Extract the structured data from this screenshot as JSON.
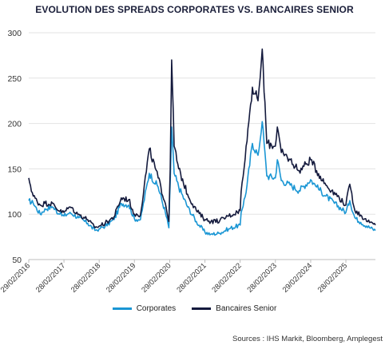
{
  "chart_data": {
    "type": "line",
    "title": "EVOLUTION DES SPREADS CORPORATES VS. BANCAIRES SENIOR",
    "xlabel": "",
    "ylabel": "",
    "ylim": [
      50,
      300
    ],
    "yticks": [
      50,
      100,
      150,
      200,
      250,
      300
    ],
    "grid": true,
    "legend_position": "bottom",
    "x_tick_labels": [
      "29/02/2016",
      "28/02/2017",
      "28/02/2018",
      "28/02/2019",
      "29/02/2020",
      "28/02/2021",
      "28/02/2022",
      "28/02/2023",
      "29/02/2024",
      "28/02/2025"
    ],
    "x_range": [
      "2016-02-29",
      "2025-12-31"
    ],
    "series": [
      {
        "name": "Corporates",
        "color": "#1a96d4",
        "x": [
          "2016-02-29",
          "2016-04-15",
          "2016-06-27",
          "2016-08-15",
          "2016-11-01",
          "2017-01-15",
          "2017-02-28",
          "2017-05-01",
          "2017-08-01",
          "2017-11-01",
          "2018-01-15",
          "2018-02-28",
          "2018-05-01",
          "2018-08-01",
          "2018-10-15",
          "2018-12-31",
          "2019-02-28",
          "2019-05-01",
          "2019-08-01",
          "2019-11-01",
          "2020-01-15",
          "2020-02-20",
          "2020-03-05",
          "2020-03-20",
          "2020-04-15",
          "2020-06-01",
          "2020-09-01",
          "2020-12-01",
          "2021-02-28",
          "2021-05-01",
          "2021-08-01",
          "2021-11-01",
          "2022-02-28",
          "2022-03-10",
          "2022-05-01",
          "2022-07-05",
          "2022-09-01",
          "2022-10-15",
          "2022-12-01",
          "2023-02-28",
          "2023-03-20",
          "2023-05-01",
          "2023-08-01",
          "2023-11-01",
          "2024-02-29",
          "2024-05-01",
          "2024-08-05",
          "2024-11-01",
          "2025-02-28",
          "2025-04-09",
          "2025-06-01",
          "2025-08-01",
          "2025-10-01",
          "2025-12-31"
        ],
        "values": [
          115,
          112,
          100,
          106,
          108,
          100,
          98,
          102,
          96,
          90,
          82,
          84,
          87,
          94,
          112,
          110,
          95,
          94,
          145,
          130,
          102,
          85,
          135,
          196,
          145,
          130,
          108,
          92,
          80,
          78,
          79,
          84,
          88,
          102,
          124,
          178,
          165,
          202,
          142,
          140,
          160,
          137,
          132,
          126,
          138,
          130,
          120,
          112,
          102,
          115,
          96,
          91,
          87,
          82
        ]
      },
      {
        "name": "Bancaires Senior",
        "color": "#141a3d",
        "x": [
          "2016-02-29",
          "2016-04-15",
          "2016-06-27",
          "2016-08-15",
          "2016-11-01",
          "2017-01-15",
          "2017-02-28",
          "2017-05-01",
          "2017-08-01",
          "2017-11-01",
          "2018-01-15",
          "2018-02-28",
          "2018-05-01",
          "2018-08-01",
          "2018-10-15",
          "2018-12-31",
          "2019-02-28",
          "2019-05-01",
          "2019-08-01",
          "2019-11-01",
          "2020-01-15",
          "2020-02-20",
          "2020-03-05",
          "2020-03-20",
          "2020-04-15",
          "2020-06-01",
          "2020-09-01",
          "2020-12-01",
          "2021-02-28",
          "2021-05-01",
          "2021-08-01",
          "2021-11-01",
          "2022-02-28",
          "2022-03-10",
          "2022-05-01",
          "2022-07-05",
          "2022-09-01",
          "2022-10-15",
          "2022-12-01",
          "2023-02-28",
          "2023-03-20",
          "2023-05-01",
          "2023-08-01",
          "2023-11-01",
          "2024-02-29",
          "2024-05-01",
          "2024-08-05",
          "2024-11-01",
          "2025-02-28",
          "2025-04-09",
          "2025-06-01",
          "2025-08-01",
          "2025-10-01",
          "2025-12-31"
        ],
        "values": [
          140,
          120,
          110,
          112,
          112,
          103,
          102,
          108,
          100,
          94,
          85,
          87,
          90,
          97,
          118,
          116,
          100,
          99,
          172,
          140,
          112,
          92,
          150,
          270,
          175,
          150,
          122,
          104,
          94,
          92,
          93,
          98,
          104,
          125,
          175,
          240,
          225,
          282,
          178,
          175,
          196,
          168,
          160,
          148,
          160,
          148,
          132,
          124,
          110,
          133,
          104,
          99,
          92,
          88
        ]
      }
    ]
  },
  "legend": {
    "items": [
      {
        "label": "Corporates",
        "color": "#1a96d4"
      },
      {
        "label": "Bancaires Senior",
        "color": "#141a3d"
      }
    ]
  },
  "source_note": "Sources : IHS Markit, Bloomberg, Amplegest"
}
